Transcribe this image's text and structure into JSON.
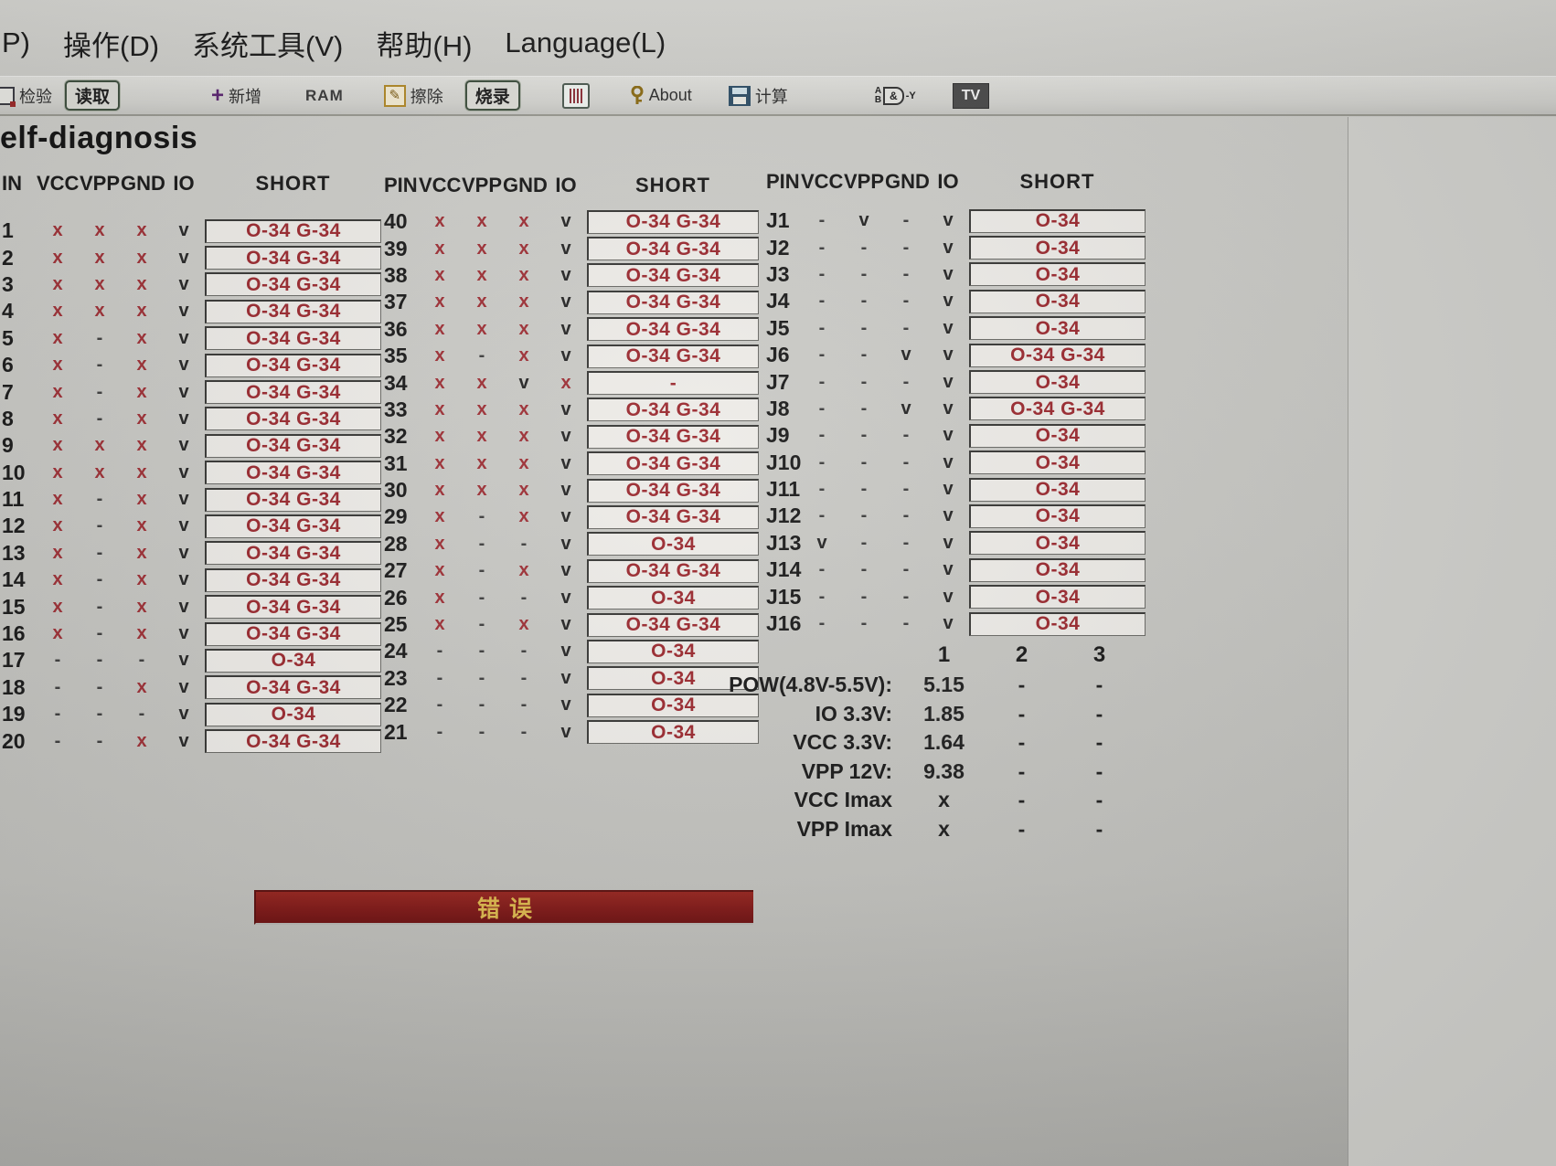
{
  "menu": {
    "items": [
      {
        "label": "P)"
      },
      {
        "label": "操作(D)"
      },
      {
        "label": "系统工具(V)"
      },
      {
        "label": "帮助(H)"
      },
      {
        "label": "Language(L)"
      }
    ]
  },
  "toolbar": {
    "verify_label": "检验",
    "read_button": "读取",
    "add_label": "新增",
    "ram_label": "RAM",
    "erase_label": "擦除",
    "burn_button": "烧录",
    "about_label": "About",
    "calc_label": "计算",
    "tv_button": "TV"
  },
  "page": {
    "title": "elf-diagnosis"
  },
  "table": {
    "headers": {
      "pin_g1": "IN",
      "pin": "PIN",
      "vcc": "VCC",
      "vpp": "VPP",
      "gnd": "GND",
      "io": "IO",
      "short": "SHORT"
    },
    "group1": [
      {
        "pin": "1",
        "vcc": "x",
        "vpp": "x",
        "gnd": "x",
        "io": "v",
        "short": "O-34 G-34"
      },
      {
        "pin": "2",
        "vcc": "x",
        "vpp": "x",
        "gnd": "x",
        "io": "v",
        "short": "O-34 G-34"
      },
      {
        "pin": "3",
        "vcc": "x",
        "vpp": "x",
        "gnd": "x",
        "io": "v",
        "short": "O-34 G-34"
      },
      {
        "pin": "4",
        "vcc": "x",
        "vpp": "x",
        "gnd": "x",
        "io": "v",
        "short": "O-34 G-34"
      },
      {
        "pin": "5",
        "vcc": "x",
        "vpp": "-",
        "gnd": "x",
        "io": "v",
        "short": "O-34 G-34"
      },
      {
        "pin": "6",
        "vcc": "x",
        "vpp": "-",
        "gnd": "x",
        "io": "v",
        "short": "O-34 G-34"
      },
      {
        "pin": "7",
        "vcc": "x",
        "vpp": "-",
        "gnd": "x",
        "io": "v",
        "short": "O-34 G-34"
      },
      {
        "pin": "8",
        "vcc": "x",
        "vpp": "-",
        "gnd": "x",
        "io": "v",
        "short": "O-34 G-34"
      },
      {
        "pin": "9",
        "vcc": "x",
        "vpp": "x",
        "gnd": "x",
        "io": "v",
        "short": "O-34 G-34"
      },
      {
        "pin": "10",
        "vcc": "x",
        "vpp": "x",
        "gnd": "x",
        "io": "v",
        "short": "O-34 G-34"
      },
      {
        "pin": "11",
        "vcc": "x",
        "vpp": "-",
        "gnd": "x",
        "io": "v",
        "short": "O-34 G-34"
      },
      {
        "pin": "12",
        "vcc": "x",
        "vpp": "-",
        "gnd": "x",
        "io": "v",
        "short": "O-34 G-34"
      },
      {
        "pin": "13",
        "vcc": "x",
        "vpp": "-",
        "gnd": "x",
        "io": "v",
        "short": "O-34 G-34"
      },
      {
        "pin": "14",
        "vcc": "x",
        "vpp": "-",
        "gnd": "x",
        "io": "v",
        "short": "O-34 G-34"
      },
      {
        "pin": "15",
        "vcc": "x",
        "vpp": "-",
        "gnd": "x",
        "io": "v",
        "short": "O-34 G-34"
      },
      {
        "pin": "16",
        "vcc": "x",
        "vpp": "-",
        "gnd": "x",
        "io": "v",
        "short": "O-34 G-34"
      },
      {
        "pin": "17",
        "vcc": "-",
        "vpp": "-",
        "gnd": "-",
        "io": "v",
        "short": "O-34"
      },
      {
        "pin": "18",
        "vcc": "-",
        "vpp": "-",
        "gnd": "x",
        "io": "v",
        "short": "O-34 G-34"
      },
      {
        "pin": "19",
        "vcc": "-",
        "vpp": "-",
        "gnd": "-",
        "io": "v",
        "short": "O-34"
      },
      {
        "pin": "20",
        "vcc": "-",
        "vpp": "-",
        "gnd": "x",
        "io": "v",
        "short": "O-34 G-34"
      }
    ],
    "group2": [
      {
        "pin": "40",
        "vcc": "x",
        "vpp": "x",
        "gnd": "x",
        "io": "v",
        "short": "O-34 G-34"
      },
      {
        "pin": "39",
        "vcc": "x",
        "vpp": "x",
        "gnd": "x",
        "io": "v",
        "short": "O-34 G-34"
      },
      {
        "pin": "38",
        "vcc": "x",
        "vpp": "x",
        "gnd": "x",
        "io": "v",
        "short": "O-34 G-34"
      },
      {
        "pin": "37",
        "vcc": "x",
        "vpp": "x",
        "gnd": "x",
        "io": "v",
        "short": "O-34 G-34"
      },
      {
        "pin": "36",
        "vcc": "x",
        "vpp": "x",
        "gnd": "x",
        "io": "v",
        "short": "O-34 G-34"
      },
      {
        "pin": "35",
        "vcc": "x",
        "vpp": "-",
        "gnd": "x",
        "io": "v",
        "short": "O-34 G-34"
      },
      {
        "pin": "34",
        "vcc": "x",
        "vpp": "x",
        "gnd": "v",
        "io": "x",
        "short": "-"
      },
      {
        "pin": "33",
        "vcc": "x",
        "vpp": "x",
        "gnd": "x",
        "io": "v",
        "short": "O-34 G-34"
      },
      {
        "pin": "32",
        "vcc": "x",
        "vpp": "x",
        "gnd": "x",
        "io": "v",
        "short": "O-34 G-34"
      },
      {
        "pin": "31",
        "vcc": "x",
        "vpp": "x",
        "gnd": "x",
        "io": "v",
        "short": "O-34 G-34"
      },
      {
        "pin": "30",
        "vcc": "x",
        "vpp": "x",
        "gnd": "x",
        "io": "v",
        "short": "O-34 G-34"
      },
      {
        "pin": "29",
        "vcc": "x",
        "vpp": "-",
        "gnd": "x",
        "io": "v",
        "short": "O-34 G-34"
      },
      {
        "pin": "28",
        "vcc": "x",
        "vpp": "-",
        "gnd": "-",
        "io": "v",
        "short": "O-34"
      },
      {
        "pin": "27",
        "vcc": "x",
        "vpp": "-",
        "gnd": "x",
        "io": "v",
        "short": "O-34 G-34"
      },
      {
        "pin": "26",
        "vcc": "x",
        "vpp": "-",
        "gnd": "-",
        "io": "v",
        "short": "O-34"
      },
      {
        "pin": "25",
        "vcc": "x",
        "vpp": "-",
        "gnd": "x",
        "io": "v",
        "short": "O-34 G-34"
      },
      {
        "pin": "24",
        "vcc": "-",
        "vpp": "-",
        "gnd": "-",
        "io": "v",
        "short": "O-34"
      },
      {
        "pin": "23",
        "vcc": "-",
        "vpp": "-",
        "gnd": "-",
        "io": "v",
        "short": "O-34"
      },
      {
        "pin": "22",
        "vcc": "-",
        "vpp": "-",
        "gnd": "-",
        "io": "v",
        "short": "O-34"
      },
      {
        "pin": "21",
        "vcc": "-",
        "vpp": "-",
        "gnd": "-",
        "io": "v",
        "short": "O-34"
      }
    ],
    "group3": [
      {
        "pin": "J1",
        "vcc": "-",
        "vpp": "v",
        "gnd": "-",
        "io": "v",
        "short": "O-34"
      },
      {
        "pin": "J2",
        "vcc": "-",
        "vpp": "-",
        "gnd": "-",
        "io": "v",
        "short": "O-34"
      },
      {
        "pin": "J3",
        "vcc": "-",
        "vpp": "-",
        "gnd": "-",
        "io": "v",
        "short": "O-34"
      },
      {
        "pin": "J4",
        "vcc": "-",
        "vpp": "-",
        "gnd": "-",
        "io": "v",
        "short": "O-34"
      },
      {
        "pin": "J5",
        "vcc": "-",
        "vpp": "-",
        "gnd": "-",
        "io": "v",
        "short": "O-34"
      },
      {
        "pin": "J6",
        "vcc": "-",
        "vpp": "-",
        "gnd": "v",
        "io": "v",
        "short": "O-34 G-34"
      },
      {
        "pin": "J7",
        "vcc": "-",
        "vpp": "-",
        "gnd": "-",
        "io": "v",
        "short": "O-34"
      },
      {
        "pin": "J8",
        "vcc": "-",
        "vpp": "-",
        "gnd": "v",
        "io": "v",
        "short": "O-34 G-34"
      },
      {
        "pin": "J9",
        "vcc": "-",
        "vpp": "-",
        "gnd": "-",
        "io": "v",
        "short": "O-34"
      },
      {
        "pin": "J10",
        "vcc": "-",
        "vpp": "-",
        "gnd": "-",
        "io": "v",
        "short": "O-34"
      },
      {
        "pin": "J11",
        "vcc": "-",
        "vpp": "-",
        "gnd": "-",
        "io": "v",
        "short": "O-34"
      },
      {
        "pin": "J12",
        "vcc": "-",
        "vpp": "-",
        "gnd": "-",
        "io": "v",
        "short": "O-34"
      },
      {
        "pin": "J13",
        "vcc": "v",
        "vpp": "-",
        "gnd": "-",
        "io": "v",
        "short": "O-34"
      },
      {
        "pin": "J14",
        "vcc": "-",
        "vpp": "-",
        "gnd": "-",
        "io": "v",
        "short": "O-34"
      },
      {
        "pin": "J15",
        "vcc": "-",
        "vpp": "-",
        "gnd": "-",
        "io": "v",
        "short": "O-34"
      },
      {
        "pin": "J16",
        "vcc": "-",
        "vpp": "-",
        "gnd": "-",
        "io": "v",
        "short": "O-34"
      }
    ]
  },
  "power": {
    "col_headers": [
      "1",
      "2",
      "3"
    ],
    "rows": [
      {
        "label": "POW(4.8V-5.5V):",
        "values": [
          "5.15",
          "-",
          "-"
        ]
      },
      {
        "label": "IO  3.3V:",
        "values": [
          "1.85",
          "-",
          "-"
        ]
      },
      {
        "label": "VCC 3.3V:",
        "values": [
          "1.64",
          "-",
          "-"
        ]
      },
      {
        "label": "VPP  12V:",
        "values": [
          "9.38",
          "-",
          "-"
        ]
      },
      {
        "label": "VCC Imax",
        "values": [
          "x",
          "-",
          "-"
        ]
      },
      {
        "label": "VPP Imax",
        "values": [
          "x",
          "-",
          "-"
        ]
      }
    ]
  },
  "banner": {
    "text": "错误"
  },
  "colors": {
    "short_red": "#9b2a30",
    "mark_red": "#9e3036",
    "banner_bg": "#7e1817",
    "banner_text": "#dcb84e"
  }
}
